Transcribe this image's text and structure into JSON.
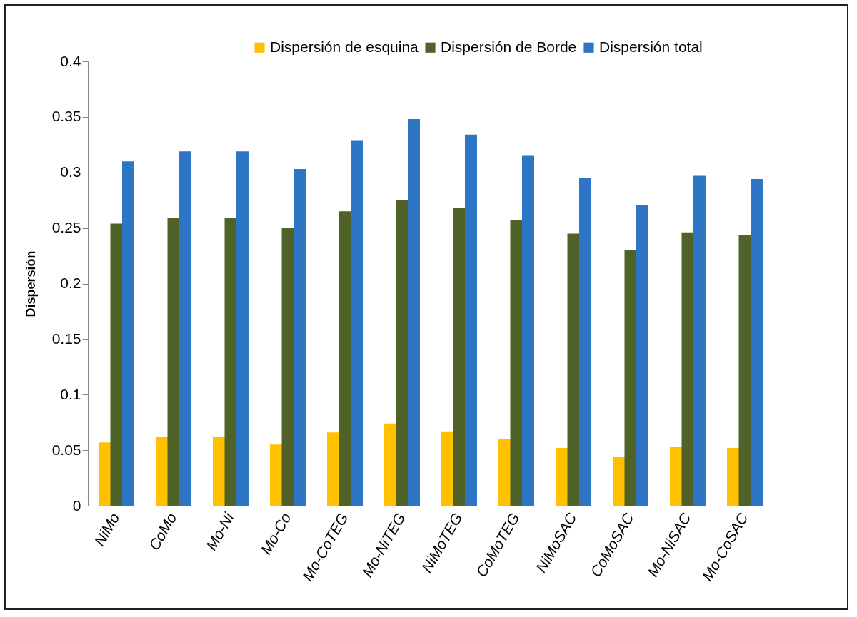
{
  "chart_data": {
    "type": "bar",
    "ylabel": "Dispersión",
    "categories": [
      "NiMo",
      "CoMo",
      "Mo-Ni",
      "Mo-Co",
      "Mo-CoTEG",
      "Mo-NiTEG",
      "NiMoTEG",
      "CoMoTEG",
      "NiMoSAC",
      "CoMoSAC",
      "Mo-NiSAC",
      "Mo-CoSAC"
    ],
    "series": [
      {
        "name": "Dispersión de esquina",
        "color": "#ffc000",
        "values": [
          0.057,
          0.062,
          0.062,
          0.055,
          0.066,
          0.074,
          0.067,
          0.06,
          0.052,
          0.044,
          0.053,
          0.052
        ]
      },
      {
        "name": "Dispersión de Borde",
        "color": "#4f6228",
        "values": [
          0.254,
          0.259,
          0.259,
          0.25,
          0.265,
          0.275,
          0.268,
          0.257,
          0.245,
          0.23,
          0.246,
          0.244
        ]
      },
      {
        "name": "Dispersión total",
        "color": "#2e75c6",
        "values": [
          0.31,
          0.319,
          0.319,
          0.303,
          0.329,
          0.348,
          0.334,
          0.315,
          0.295,
          0.271,
          0.297,
          0.294
        ]
      }
    ],
    "ylim": [
      0,
      0.4
    ],
    "yticks": [
      0,
      0.05,
      0.1,
      0.15,
      0.2,
      0.25,
      0.3,
      0.35,
      0.4
    ],
    "grid": false,
    "legend": "top"
  }
}
